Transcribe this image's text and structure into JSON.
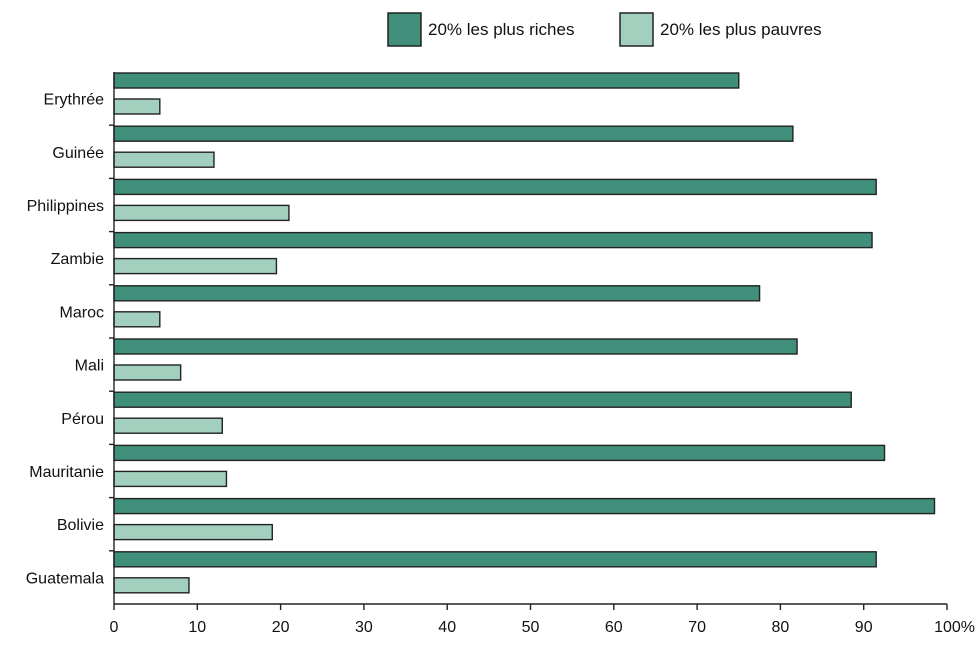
{
  "chart_data": {
    "type": "bar",
    "orientation": "horizontal",
    "title": "",
    "xlabel": "",
    "ylabel": "",
    "xlim": [
      0,
      100
    ],
    "x_ticks": [
      "0",
      "10",
      "20",
      "30",
      "40",
      "50",
      "60",
      "70",
      "80",
      "90",
      "100%"
    ],
    "categories": [
      "Erythrée",
      "Guinée",
      "Philippines",
      "Zambie",
      "Maroc",
      "Mali",
      "Pérou",
      "Mauritanie",
      "Bolivie",
      "Guatemala"
    ],
    "series": [
      {
        "name": "20% les plus riches",
        "color": "#3f8f7a",
        "values": [
          75,
          81.5,
          91.5,
          91,
          77.5,
          82,
          88.5,
          92.5,
          98.5,
          91.5
        ]
      },
      {
        "name": "20% les plus pauvres",
        "color": "#a3cfbf",
        "values": [
          5.5,
          12,
          21,
          19.5,
          5.5,
          8,
          13,
          13.5,
          19,
          9
        ]
      }
    ],
    "legend_position": "top-right",
    "grid": false
  }
}
